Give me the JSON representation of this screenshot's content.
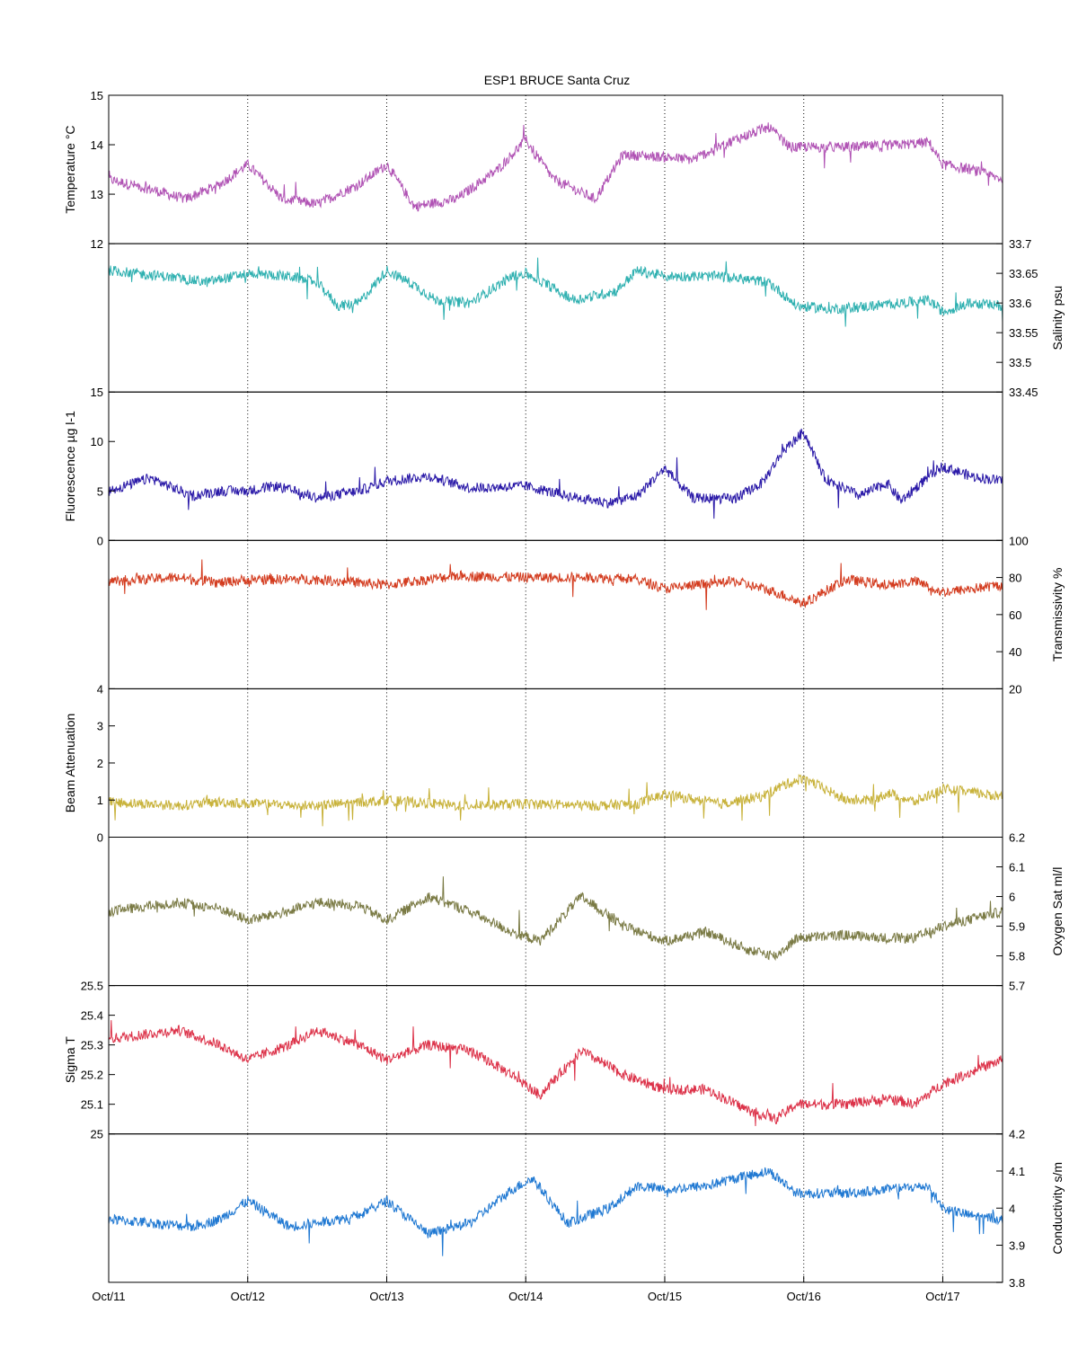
{
  "chart_data": {
    "type": "line",
    "title": "ESP1 BRUCE Santa Cruz",
    "x_tick_labels": [
      "Oct/11",
      "Oct/12",
      "Oct/13",
      "Oct/14",
      "Oct/15",
      "Oct/16",
      "Oct/17"
    ],
    "x_range_days": [
      11.0,
      17.43
    ],
    "grid": "vertical dotted at day ticks",
    "panels": [
      {
        "name": "temperature",
        "ylabel": "Temperature °C",
        "side": "left",
        "ylim": [
          12,
          15
        ],
        "ticks": [
          12,
          13,
          14,
          15
        ],
        "tick_labels": [
          "12",
          "13",
          "14",
          "15"
        ],
        "color": "#b052b4",
        "series": [
          [
            11.0,
            13.3
          ],
          [
            11.3,
            13.1
          ],
          [
            11.55,
            12.9
          ],
          [
            11.8,
            13.2
          ],
          [
            12.0,
            13.6
          ],
          [
            12.25,
            12.9
          ],
          [
            12.5,
            12.8
          ],
          [
            12.8,
            13.2
          ],
          [
            13.0,
            13.6
          ],
          [
            13.2,
            12.75
          ],
          [
            13.5,
            12.9
          ],
          [
            13.8,
            13.5
          ],
          [
            14.0,
            14.1
          ],
          [
            14.2,
            13.3
          ],
          [
            14.5,
            12.9
          ],
          [
            14.7,
            13.8
          ],
          [
            15.0,
            13.75
          ],
          [
            15.2,
            13.7
          ],
          [
            15.5,
            14.1
          ],
          [
            15.75,
            14.35
          ],
          [
            15.9,
            13.95
          ],
          [
            16.3,
            13.95
          ],
          [
            16.7,
            14.0
          ],
          [
            16.9,
            14.05
          ],
          [
            17.0,
            13.6
          ],
          [
            17.2,
            13.5
          ],
          [
            17.43,
            13.3
          ]
        ]
      },
      {
        "name": "salinity",
        "ylabel": "Salinity psu",
        "side": "right",
        "ylim": [
          33.45,
          33.7
        ],
        "ticks": [
          33.45,
          33.5,
          33.55,
          33.6,
          33.65,
          33.7
        ],
        "tick_labels": [
          "33.45",
          "33.5",
          "33.55",
          "33.6",
          "33.65",
          "33.7"
        ],
        "color": "#2eb0b0",
        "series": [
          [
            11.0,
            33.655
          ],
          [
            11.4,
            33.645
          ],
          [
            11.7,
            33.635
          ],
          [
            12.0,
            33.65
          ],
          [
            12.3,
            33.645
          ],
          [
            12.5,
            33.635
          ],
          [
            12.65,
            33.595
          ],
          [
            12.8,
            33.6
          ],
          [
            13.0,
            33.655
          ],
          [
            13.2,
            33.63
          ],
          [
            13.35,
            33.605
          ],
          [
            13.6,
            33.6
          ],
          [
            13.9,
            33.645
          ],
          [
            14.0,
            33.65
          ],
          [
            14.2,
            33.625
          ],
          [
            14.35,
            33.605
          ],
          [
            14.65,
            33.62
          ],
          [
            14.8,
            33.655
          ],
          [
            15.0,
            33.645
          ],
          [
            15.4,
            33.645
          ],
          [
            15.75,
            33.635
          ],
          [
            15.95,
            33.595
          ],
          [
            16.2,
            33.59
          ],
          [
            16.5,
            33.595
          ],
          [
            16.7,
            33.6
          ],
          [
            16.9,
            33.605
          ],
          [
            17.0,
            33.585
          ],
          [
            17.2,
            33.6
          ],
          [
            17.43,
            33.595
          ]
        ]
      },
      {
        "name": "fluorescence",
        "ylabel": "Fluorescence µg l-1",
        "side": "left",
        "ylim": [
          0,
          15
        ],
        "ticks": [
          0,
          5,
          10,
          15
        ],
        "tick_labels": [
          "0",
          "5",
          "10",
          "15"
        ],
        "color": "#2a19a8",
        "series": [
          [
            11.0,
            5.0
          ],
          [
            11.3,
            6.3
          ],
          [
            11.6,
            4.5
          ],
          [
            11.8,
            5.0
          ],
          [
            12.0,
            5.0
          ],
          [
            12.2,
            5.5
          ],
          [
            12.5,
            4.3
          ],
          [
            12.8,
            5.0
          ],
          [
            13.0,
            6.0
          ],
          [
            13.3,
            6.5
          ],
          [
            13.6,
            5.3
          ],
          [
            14.0,
            5.5
          ],
          [
            14.3,
            4.5
          ],
          [
            14.6,
            3.8
          ],
          [
            14.8,
            4.5
          ],
          [
            15.0,
            7.3
          ],
          [
            15.2,
            4.3
          ],
          [
            15.5,
            4.2
          ],
          [
            15.7,
            5.8
          ],
          [
            15.85,
            9.0
          ],
          [
            16.0,
            11.0
          ],
          [
            16.15,
            6.3
          ],
          [
            16.4,
            4.5
          ],
          [
            16.6,
            5.8
          ],
          [
            16.7,
            4.0
          ],
          [
            16.9,
            6.5
          ],
          [
            17.0,
            7.5
          ],
          [
            17.2,
            6.5
          ],
          [
            17.43,
            6.0
          ]
        ]
      },
      {
        "name": "transmissivity",
        "ylabel": "Transmissivity %",
        "side": "right",
        "ylim": [
          20,
          100
        ],
        "ticks": [
          20,
          40,
          60,
          80,
          100
        ],
        "tick_labels": [
          "20",
          "40",
          "60",
          "80",
          "100"
        ],
        "color": "#d33b1e",
        "series": [
          [
            11.0,
            78
          ],
          [
            11.5,
            80
          ],
          [
            11.8,
            77
          ],
          [
            12.0,
            79
          ],
          [
            12.5,
            79
          ],
          [
            13.0,
            76
          ],
          [
            13.5,
            81
          ],
          [
            14.0,
            80
          ],
          [
            14.5,
            80
          ],
          [
            14.8,
            79
          ],
          [
            15.0,
            74
          ],
          [
            15.5,
            78
          ],
          [
            15.8,
            72
          ],
          [
            16.0,
            66
          ],
          [
            16.3,
            79
          ],
          [
            16.6,
            76
          ],
          [
            16.8,
            78
          ],
          [
            17.0,
            72
          ],
          [
            17.43,
            76
          ]
        ]
      },
      {
        "name": "beam_attenuation",
        "ylabel": "Beam Attenuation",
        "side": "left",
        "ylim": [
          0,
          4
        ],
        "ticks": [
          0,
          1,
          2,
          3,
          4
        ],
        "tick_labels": [
          "0",
          "1",
          "2",
          "3",
          "4"
        ],
        "color": "#c8b23a",
        "series": [
          [
            11.0,
            0.95
          ],
          [
            11.5,
            0.85
          ],
          [
            11.8,
            0.95
          ],
          [
            12.0,
            0.9
          ],
          [
            12.5,
            0.85
          ],
          [
            13.0,
            1.0
          ],
          [
            13.5,
            0.85
          ],
          [
            14.0,
            0.9
          ],
          [
            14.5,
            0.85
          ],
          [
            14.8,
            0.9
          ],
          [
            15.0,
            1.15
          ],
          [
            15.4,
            0.9
          ],
          [
            15.7,
            1.1
          ],
          [
            15.85,
            1.4
          ],
          [
            16.0,
            1.6
          ],
          [
            16.3,
            1.0
          ],
          [
            16.5,
            1.0
          ],
          [
            16.6,
            1.2
          ],
          [
            16.8,
            0.95
          ],
          [
            17.0,
            1.3
          ],
          [
            17.43,
            1.1
          ]
        ]
      },
      {
        "name": "oxygen",
        "ylabel": "Oxygen Sat ml/l",
        "side": "right",
        "ylim": [
          5.7,
          6.2
        ],
        "ticks": [
          5.7,
          5.8,
          5.9,
          6.0,
          6.1,
          6.2
        ],
        "tick_labels": [
          "5.7",
          "5.8",
          "5.9",
          "6",
          "6.1",
          "6.2"
        ],
        "color": "#7a7a44",
        "series": [
          [
            11.0,
            5.95
          ],
          [
            11.5,
            5.98
          ],
          [
            11.8,
            5.96
          ],
          [
            12.0,
            5.92
          ],
          [
            12.3,
            5.95
          ],
          [
            12.5,
            5.98
          ],
          [
            12.8,
            5.97
          ],
          [
            13.0,
            5.92
          ],
          [
            13.3,
            6.0
          ],
          [
            13.6,
            5.95
          ],
          [
            13.9,
            5.88
          ],
          [
            14.1,
            5.85
          ],
          [
            14.4,
            6.0
          ],
          [
            14.7,
            5.9
          ],
          [
            15.0,
            5.85
          ],
          [
            15.3,
            5.88
          ],
          [
            15.6,
            5.82
          ],
          [
            15.8,
            5.8
          ],
          [
            15.95,
            5.86
          ],
          [
            16.3,
            5.87
          ],
          [
            16.6,
            5.86
          ],
          [
            16.8,
            5.86
          ],
          [
            17.0,
            5.9
          ],
          [
            17.43,
            5.95
          ]
        ]
      },
      {
        "name": "sigma_t",
        "ylabel": "Sigma T",
        "side": "left",
        "ylim": [
          25.0,
          25.5
        ],
        "ticks": [
          25.0,
          25.1,
          25.2,
          25.3,
          25.4,
          25.5
        ],
        "tick_labels": [
          "25",
          "25.1",
          "25.2",
          "25.3",
          "25.4",
          "25.5"
        ],
        "color": "#dc3148",
        "series": [
          [
            11.0,
            25.32
          ],
          [
            11.5,
            25.35
          ],
          [
            11.8,
            25.3
          ],
          [
            12.0,
            25.25
          ],
          [
            12.3,
            25.3
          ],
          [
            12.5,
            25.35
          ],
          [
            12.8,
            25.3
          ],
          [
            13.0,
            25.25
          ],
          [
            13.3,
            25.3
          ],
          [
            13.6,
            25.28
          ],
          [
            13.9,
            25.2
          ],
          [
            14.1,
            25.13
          ],
          [
            14.4,
            25.28
          ],
          [
            14.7,
            25.2
          ],
          [
            15.0,
            25.15
          ],
          [
            15.3,
            25.15
          ],
          [
            15.6,
            25.08
          ],
          [
            15.8,
            25.05
          ],
          [
            15.95,
            25.1
          ],
          [
            16.3,
            25.1
          ],
          [
            16.6,
            25.12
          ],
          [
            16.8,
            25.1
          ],
          [
            17.0,
            25.17
          ],
          [
            17.43,
            25.25
          ]
        ]
      },
      {
        "name": "conductivity",
        "ylabel": "Conductivity s/m",
        "side": "right",
        "ylim": [
          3.8,
          4.2
        ],
        "ticks": [
          3.8,
          3.9,
          4.0,
          4.1,
          4.2
        ],
        "tick_labels": [
          "3.8",
          "3.9",
          "4",
          "4.1",
          "4.2"
        ],
        "color": "#1f78d2",
        "series": [
          [
            11.0,
            3.97
          ],
          [
            11.3,
            3.96
          ],
          [
            11.6,
            3.95
          ],
          [
            11.8,
            3.97
          ],
          [
            12.0,
            4.02
          ],
          [
            12.3,
            3.95
          ],
          [
            12.5,
            3.96
          ],
          [
            12.8,
            3.98
          ],
          [
            13.0,
            4.02
          ],
          [
            13.3,
            3.93
          ],
          [
            13.6,
            3.96
          ],
          [
            13.9,
            4.05
          ],
          [
            14.05,
            4.08
          ],
          [
            14.3,
            3.96
          ],
          [
            14.6,
            4.0
          ],
          [
            14.8,
            4.06
          ],
          [
            15.0,
            4.05
          ],
          [
            15.3,
            4.06
          ],
          [
            15.5,
            4.08
          ],
          [
            15.75,
            4.1
          ],
          [
            15.95,
            4.04
          ],
          [
            16.3,
            4.04
          ],
          [
            16.6,
            4.05
          ],
          [
            16.9,
            4.06
          ],
          [
            17.0,
            4.0
          ],
          [
            17.2,
            3.98
          ],
          [
            17.43,
            3.97
          ]
        ]
      }
    ]
  }
}
